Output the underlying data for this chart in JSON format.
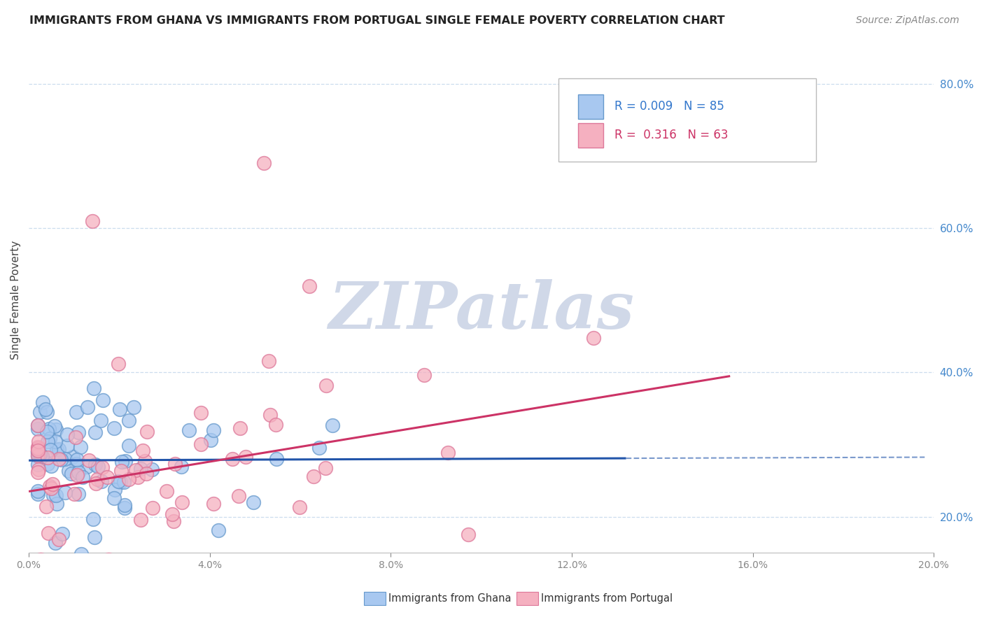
{
  "title": "IMMIGRANTS FROM GHANA VS IMMIGRANTS FROM PORTUGAL SINGLE FEMALE POVERTY CORRELATION CHART",
  "source": "Source: ZipAtlas.com",
  "ylabel_label": "Single Female Poverty",
  "xlim": [
    0.0,
    0.2
  ],
  "ylim": [
    0.15,
    0.85
  ],
  "ghana_r": 0.009,
  "ghana_n": 85,
  "portugal_r": 0.316,
  "portugal_n": 63,
  "ghana_color": "#a8c8f0",
  "ghana_edge_color": "#6699cc",
  "portugal_color": "#f5b0c0",
  "portugal_edge_color": "#dd7799",
  "ghana_line_color": "#2255aa",
  "portugal_line_color": "#cc3366",
  "watermark_color": "#d0d8e8",
  "grid_color": "#ccddee",
  "yticks": [
    0.2,
    0.4,
    0.6,
    0.8
  ],
  "xticks": [
    0.0,
    0.04,
    0.08,
    0.12,
    0.16,
    0.2
  ],
  "ghana_trend_x": [
    0.0,
    0.132
  ],
  "ghana_trend_y": [
    0.278,
    0.281
  ],
  "portugal_trend_x": [
    0.0,
    0.155
  ],
  "portugal_trend_y": [
    0.235,
    0.395
  ],
  "legend_ghana_text": "R = 0.009   N = 85",
  "legend_portugal_text": "R =  0.316   N = 63",
  "bottom_legend_ghana": "Immigrants from Ghana",
  "bottom_legend_portugal": "Immigrants from Portugal"
}
